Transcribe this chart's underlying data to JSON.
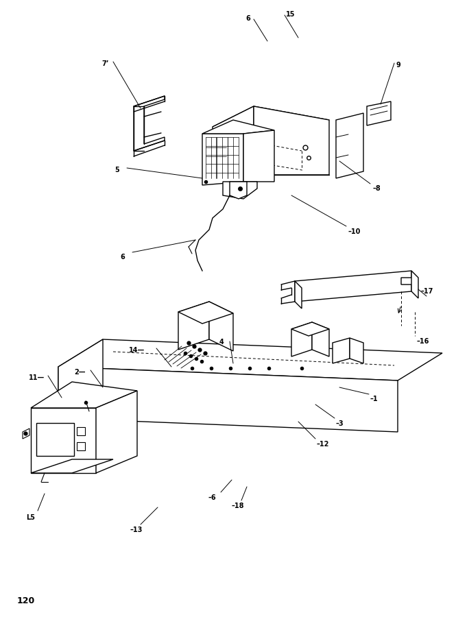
{
  "page_number": "120",
  "background_color": "#ffffff",
  "line_color": "#000000",
  "fig_width": 6.65,
  "fig_height": 9.0,
  "dpi": 100
}
